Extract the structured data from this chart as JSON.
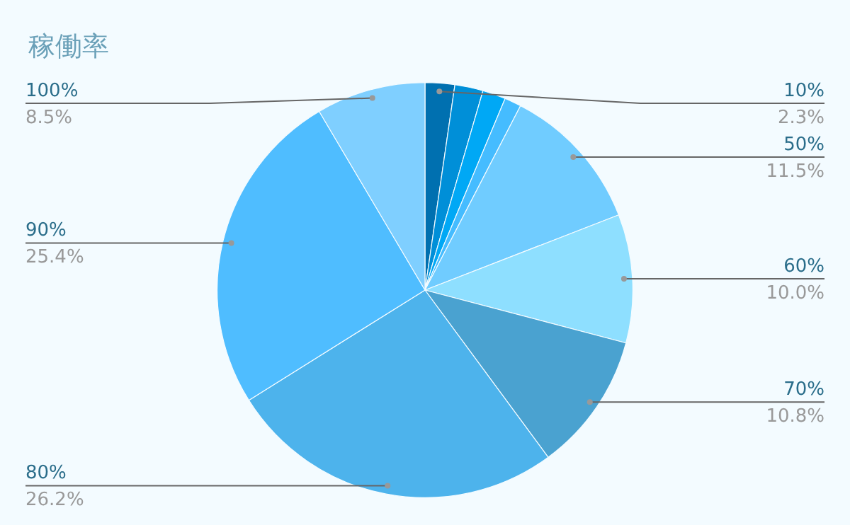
{
  "chart_data": {
    "type": "pie",
    "title": "稼働率",
    "categories": [
      "10%",
      null,
      null,
      null,
      "50%",
      "60%",
      "70%",
      "80%",
      "90%",
      "100%"
    ],
    "values": [
      2.3,
      2.2,
      1.8,
      1.3,
      11.5,
      10.0,
      10.8,
      26.2,
      25.4,
      8.5
    ],
    "value_labels": [
      "2.3%",
      null,
      null,
      null,
      "11.5%",
      "10.0%",
      "10.8%",
      "26.2%",
      "25.4%",
      "8.5%"
    ],
    "colors": [
      "#0070b0",
      "#008fd8",
      "#00a8f5",
      "#45bcff",
      "#70ccff",
      "#8edfff",
      "#4aa2d0",
      "#4db3ec",
      "#4fbdff",
      "#7fcfff"
    ],
    "legend": false
  }
}
